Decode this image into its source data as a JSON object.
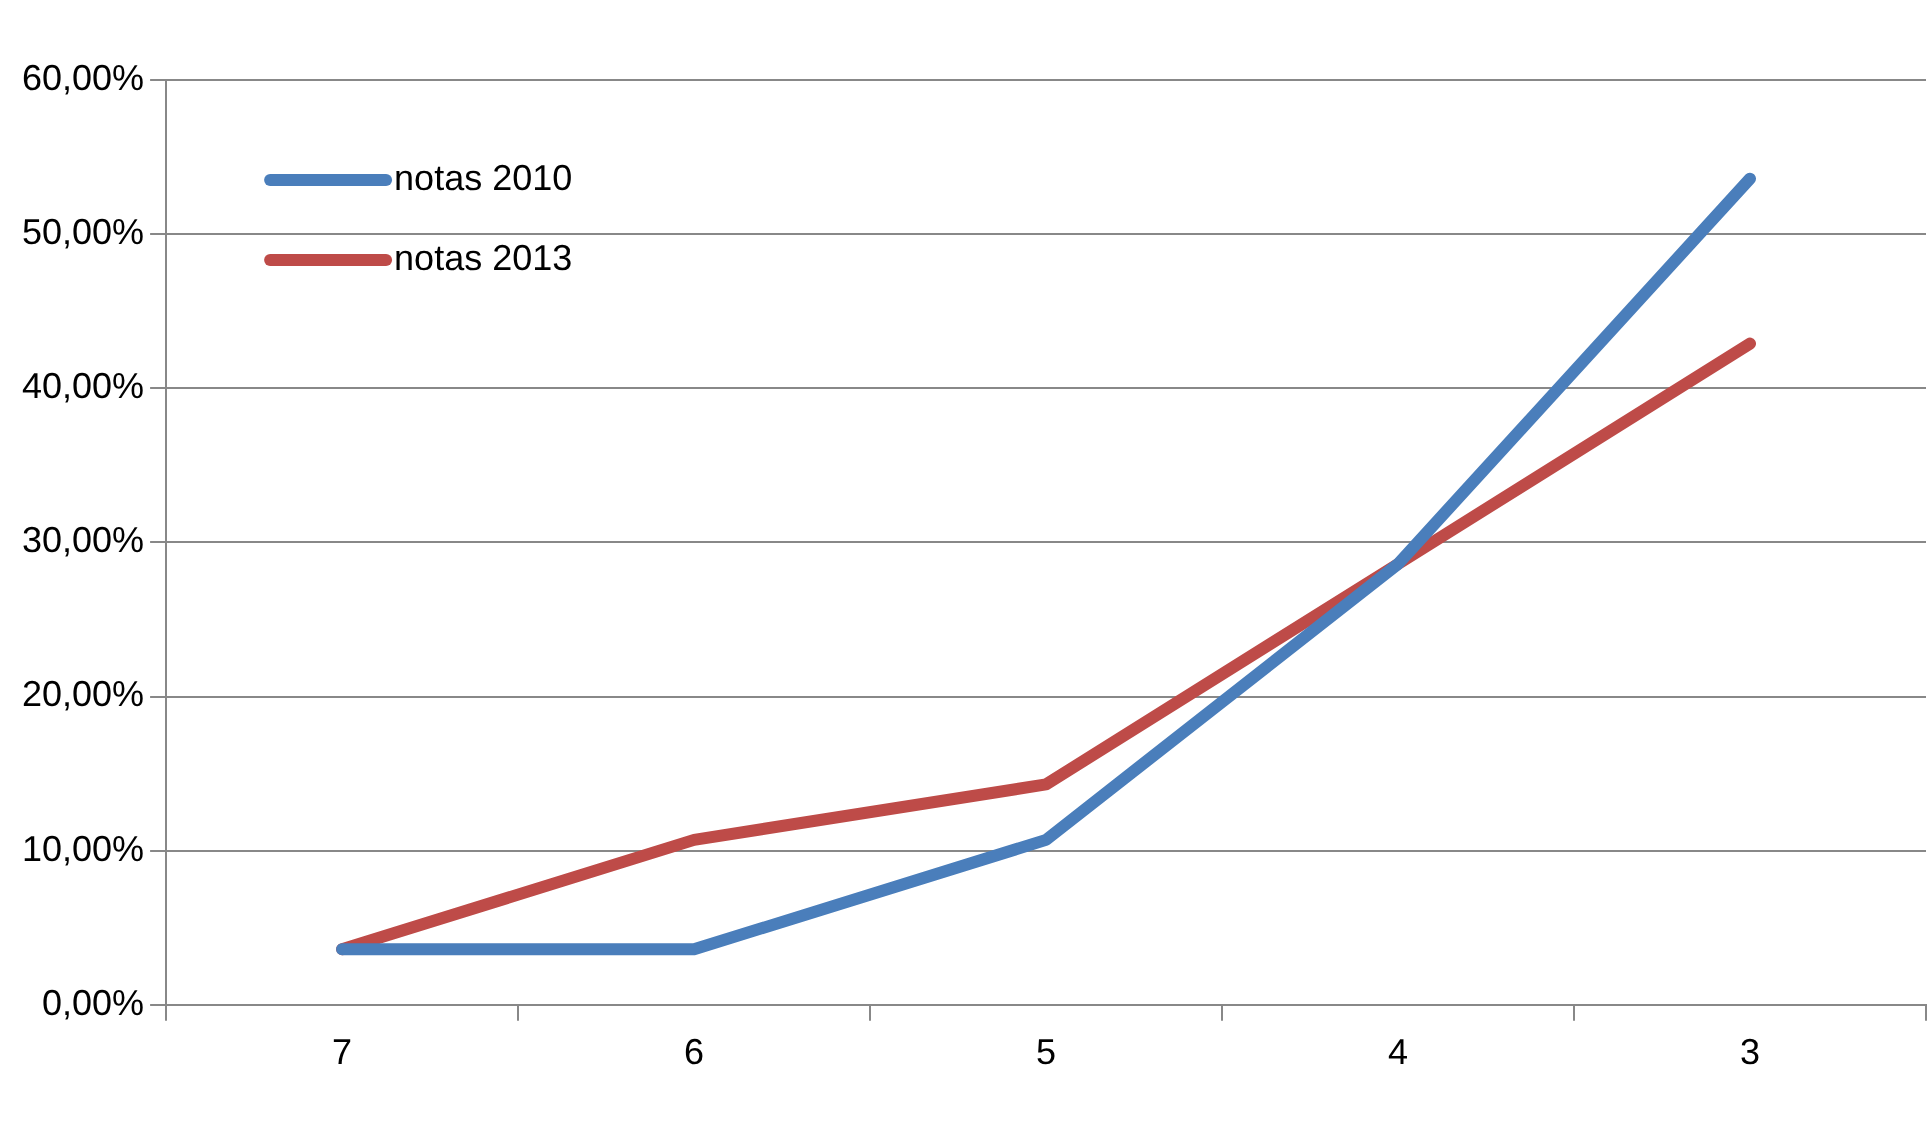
{
  "chart_data": {
    "type": "line",
    "categories": [
      "7",
      "6",
      "5",
      "4",
      "3"
    ],
    "series": [
      {
        "name": "notas 2010",
        "color": "#4a7ebb",
        "values": [
          3.6,
          3.6,
          10.7,
          28.6,
          53.6
        ]
      },
      {
        "name": "notas 2013",
        "color": "#be4b48",
        "values": [
          3.6,
          10.7,
          14.3,
          28.6,
          42.9
        ]
      }
    ],
    "ylim": [
      0,
      60
    ],
    "yticks": [
      {
        "value": 0,
        "label": "0,00%"
      },
      {
        "value": 10,
        "label": "10,00%"
      },
      {
        "value": 20,
        "label": "20,00%"
      },
      {
        "value": 30,
        "label": "30,00%"
      },
      {
        "value": 40,
        "label": "40,00%"
      },
      {
        "value": 50,
        "label": "50,00%"
      },
      {
        "value": 60,
        "label": "60,00%"
      }
    ],
    "grid": "y",
    "legend": "top left",
    "marker": "none",
    "line_style": "solid"
  }
}
